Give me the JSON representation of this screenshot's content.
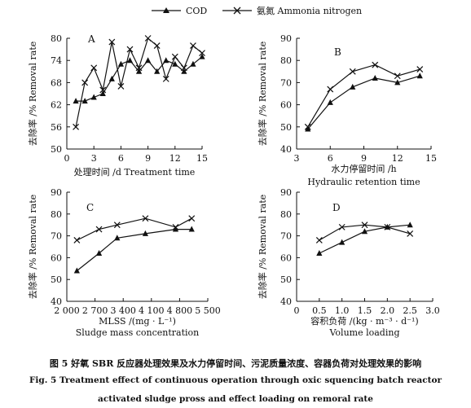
{
  "legend": {
    "series_cod": "COD",
    "series_ammonia": "氨氮 Ammonia nitrogen"
  },
  "caption": {
    "line_cn": "图 5    好氧 SBR 反应器处理效果及水力停留时间、污泥质量浓度、容器负荷对处理效果的影响",
    "line_en_1": "Fig. 5    Treatment effect of continuous operation through oxic squencing batch reactor",
    "line_en_2": "activated sludge pross and effect loading on remoral rate"
  },
  "chart_data": [
    {
      "panel": "A",
      "type": "line",
      "xlabel": "处理时间 /d  Treatment time",
      "ylabel": "去除率 /%  Removal rate",
      "xlim": [
        0,
        15
      ],
      "ylim": [
        50,
        80
      ],
      "xticks": [
        "0",
        "3",
        "6",
        "9",
        "12",
        "15"
      ],
      "yticks": [
        "50",
        "56",
        "62",
        "68",
        "74",
        "80"
      ],
      "series": [
        {
          "name": "COD",
          "x": [
            1,
            2,
            3,
            4,
            5,
            6,
            7,
            8,
            9,
            10,
            11,
            12,
            13,
            14,
            15
          ],
          "values": [
            63,
            63,
            64,
            65,
            69,
            73,
            74,
            71,
            74,
            71,
            74,
            73,
            71,
            73,
            75
          ]
        },
        {
          "name": "氨氮 Ammonia nitrogen",
          "x": [
            1,
            2,
            3,
            4,
            5,
            6,
            7,
            8,
            9,
            10,
            11,
            12,
            13,
            14,
            15
          ],
          "values": [
            56,
            68,
            72,
            66,
            79,
            67,
            77,
            72,
            80,
            78,
            69,
            75,
            72,
            78,
            76
          ]
        }
      ]
    },
    {
      "panel": "B",
      "type": "line",
      "xlabel": "水力停留时间 /h",
      "xlabel2": "Hydraulic  retention time",
      "ylabel": "去除率 /%  Removal rate",
      "xlim": [
        3,
        15
      ],
      "ylim": [
        40,
        90
      ],
      "xticks": [
        "3",
        "6",
        "9",
        "12",
        "15"
      ],
      "yticks": [
        "40",
        "50",
        "60",
        "70",
        "80",
        "90"
      ],
      "series": [
        {
          "name": "COD",
          "x": [
            4,
            6,
            8,
            10,
            12,
            14
          ],
          "values": [
            49,
            61,
            68,
            72,
            70,
            73
          ]
        },
        {
          "name": "氨氮 Ammonia nitrogen",
          "x": [
            4,
            6,
            8,
            10,
            12,
            14
          ],
          "values": [
            50,
            67,
            75,
            78,
            73,
            76
          ]
        }
      ]
    },
    {
      "panel": "C",
      "type": "line",
      "xlabel": "MLSS /(mg · L⁻¹)",
      "xlabel2": "Sludge mass concentration",
      "ylabel": "去除率 /%  Removal rate",
      "xlim": [
        2000,
        5500
      ],
      "ylim": [
        40,
        90
      ],
      "xticks": [
        "2 000",
        "2 700",
        "3 400",
        "4 100",
        "4 800",
        "5 500"
      ],
      "yticks": [
        "40",
        "50",
        "60",
        "70",
        "80",
        "90"
      ],
      "series": [
        {
          "name": "COD",
          "x": [
            2250,
            2800,
            3250,
            3950,
            4700,
            5100
          ],
          "values": [
            54,
            62,
            69,
            71,
            73,
            73
          ]
        },
        {
          "name": "氨氮 Ammonia nitrogen",
          "x": [
            2250,
            2800,
            3250,
            3950,
            4700,
            5100
          ],
          "values": [
            68,
            73,
            75,
            78,
            74,
            78
          ]
        }
      ]
    },
    {
      "panel": "D",
      "type": "line",
      "xlabel": "容积负荷 /(kg · m⁻³ · d⁻¹)",
      "xlabel2": "Volume loading",
      "ylabel": "去除率 /%  Removal rate",
      "xlim": [
        0,
        3
      ],
      "ylim": [
        40,
        90
      ],
      "xticks": [
        "0",
        "0.5",
        "1.0",
        "1.5",
        "2.0",
        "2.5",
        "3.0"
      ],
      "yticks": [
        "40",
        "50",
        "60",
        "70",
        "80",
        "90"
      ],
      "series": [
        {
          "name": "COD",
          "x": [
            0.5,
            1.0,
            1.5,
            2.0,
            2.5
          ],
          "values": [
            62,
            67,
            72,
            74,
            75
          ]
        },
        {
          "name": "氨氮 Ammonia nitrogen",
          "x": [
            0.5,
            1.0,
            1.5,
            2.0,
            2.5
          ],
          "values": [
            68,
            74,
            75,
            74,
            71
          ]
        }
      ]
    }
  ]
}
